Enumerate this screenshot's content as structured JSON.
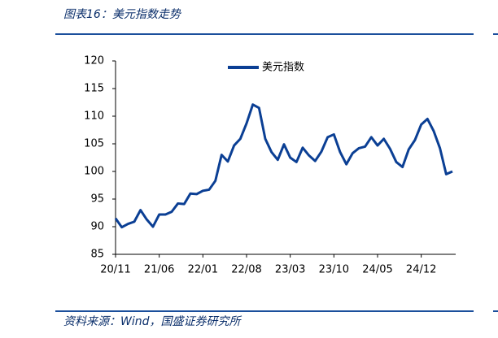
{
  "chart_data": {
    "type": "line",
    "title": "图表16：美元指数走势",
    "source": "资料来源：Wind，国盛证券研究所",
    "categories": [
      "20/11",
      null,
      null,
      null,
      null,
      null,
      null,
      "21/06",
      null,
      null,
      null,
      null,
      null,
      null,
      "22/01",
      null,
      null,
      null,
      null,
      null,
      null,
      "22/08",
      null,
      null,
      null,
      null,
      null,
      null,
      "23/03",
      null,
      null,
      null,
      null,
      null,
      null,
      "23/10",
      null,
      null,
      null,
      null,
      null,
      null,
      "24/05",
      null,
      null,
      null,
      null,
      null,
      null,
      "24/12",
      null,
      null,
      null,
      null,
      null
    ],
    "series": [
      {
        "name": "美元指数",
        "color": "#0b3f94",
        "values": [
          91.5,
          89.9,
          90.5,
          90.9,
          93.0,
          91.3,
          90.0,
          92.2,
          92.2,
          92.7,
          94.2,
          94.1,
          96.0,
          95.9,
          96.5,
          96.7,
          98.3,
          103.0,
          101.8,
          104.7,
          105.9,
          108.7,
          112.1,
          111.5,
          105.9,
          103.5,
          102.1,
          104.9,
          102.5,
          101.7,
          104.3,
          102.9,
          101.9,
          103.6,
          106.2,
          106.7,
          103.5,
          101.3,
          103.3,
          104.2,
          104.5,
          106.2,
          104.7,
          105.9,
          104.1,
          101.7,
          100.8,
          104.0,
          105.7,
          108.5,
          109.5,
          107.3,
          104.2,
          99.5,
          100.0
        ]
      }
    ],
    "ylim": [
      85,
      120
    ],
    "yticks": [
      85,
      90,
      95,
      100,
      105,
      110,
      115,
      120
    ],
    "grid": false,
    "legend": "top"
  }
}
